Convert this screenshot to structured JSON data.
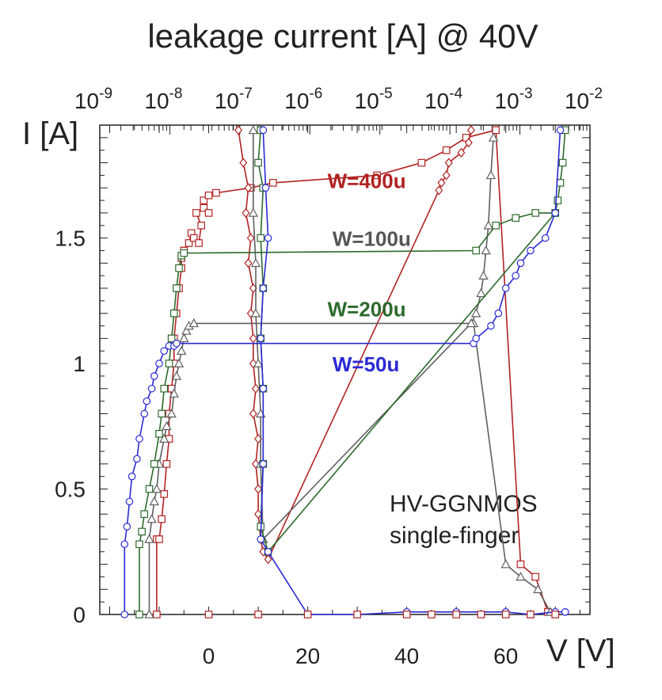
{
  "chart_data": {
    "type": "line",
    "title": "leakage current [A] @ 40V",
    "xlabel": "V [V]",
    "ylabel": "I [A]",
    "xlim": [
      -22,
      77
    ],
    "ylim": [
      0,
      1.95
    ],
    "x_ticks": [
      0,
      20,
      40,
      60
    ],
    "y_ticks": [
      0,
      0.5,
      1,
      1.5
    ],
    "y_tick_labels": [
      "0",
      "0.5",
      "1",
      "1.5"
    ],
    "top_axis": {
      "label": "leakage current [A] @ 40V",
      "scale": "log",
      "lim": [
        1e-09,
        0.01
      ],
      "tick_bases": [
        "10",
        "10",
        "10",
        "10",
        "10",
        "10",
        "10",
        "10"
      ],
      "tick_exponents": [
        "-9",
        "-8",
        "-7",
        "-6",
        "-5",
        "-4",
        "-3",
        "-2"
      ]
    },
    "annotation": [
      "HV-GGNMOS",
      "single-finger"
    ],
    "series": [
      {
        "name": "W=400u",
        "color": "#b22222",
        "marker": "square",
        "marker2": "diamond",
        "tlp": {
          "V": [
            -10.5,
            -10.5,
            -10.0,
            -9.5,
            -9.0,
            -8.5,
            -8.0,
            -8.0,
            -7.5,
            -7.0,
            -7.0,
            -6.5,
            -6.0,
            -5.5,
            -5.5,
            -5.0,
            -5.0,
            -4.0,
            -3.5,
            -3.0,
            -2.0,
            -1.5,
            -2.5,
            -1.0,
            0.0,
            -1.0,
            0.0,
            1.5,
            8.5,
            13.0,
            34.0,
            43.0,
            48.0,
            52.0,
            58.0,
            63.0,
            66.0,
            68.5
          ],
          "I": [
            0.0,
            0.3,
            0.3,
            0.38,
            0.48,
            0.6,
            0.7,
            0.8,
            0.9,
            1.0,
            1.1,
            1.2,
            1.3,
            1.38,
            1.42,
            1.45,
            1.45,
            1.48,
            1.52,
            1.5,
            1.48,
            1.55,
            1.6,
            1.62,
            1.6,
            1.65,
            1.67,
            1.68,
            1.7,
            1.72,
            1.75,
            1.8,
            1.85,
            1.9,
            1.93,
            0.2,
            0.15,
            0.01
          ]
        },
        "leak": {
          "V": [
            6.0,
            7.0,
            8.0,
            7.5,
            8.5,
            8.0,
            9.0,
            8.5,
            9.0,
            9.0,
            9.5,
            9.0,
            10.0,
            9.5,
            10.0,
            10.0,
            10.5,
            11.0,
            12.0,
            46.5,
            47.0,
            48.0,
            48.5,
            51.0,
            52.5,
            53.0
          ],
          "I": [
            1.93,
            1.8,
            1.7,
            1.6,
            1.5,
            1.4,
            1.3,
            1.2,
            1.1,
            1.0,
            0.9,
            0.8,
            0.7,
            0.6,
            0.5,
            0.4,
            0.3,
            0.25,
            0.22,
            1.69,
            1.72,
            1.75,
            1.8,
            1.84,
            1.88,
            1.93
          ]
        }
      },
      {
        "name": "W=100u",
        "color": "#606060",
        "marker": "triangle",
        "tlp": {
          "V": [
            -12.0,
            -12.0,
            -11.5,
            -11.0,
            -10.5,
            -10.0,
            -9.0,
            -8.5,
            -7.5,
            -7.0,
            -6.5,
            -6.0,
            -5.5,
            -5.0,
            -4.5,
            -4.0,
            -3.0,
            53.5,
            60.0,
            63.0,
            66.5,
            69.0
          ],
          "I": [
            0.0,
            0.3,
            0.38,
            0.45,
            0.5,
            0.6,
            0.7,
            0.75,
            0.8,
            0.88,
            0.95,
            1.0,
            1.05,
            1.1,
            1.13,
            1.15,
            1.16,
            1.16,
            0.2,
            0.15,
            0.1,
            0.01
          ]
        },
        "leak": {
          "V": [
            9.0,
            9.0,
            9.5,
            9.5,
            10.0,
            10.5,
            10.5,
            11.0,
            53.0,
            54.0,
            55.0,
            55.5,
            56.0,
            56.5,
            57.0,
            57.5
          ],
          "I": [
            1.93,
            1.6,
            1.4,
            1.2,
            1.0,
            0.8,
            0.6,
            0.3,
            1.16,
            1.2,
            1.28,
            1.35,
            1.45,
            1.55,
            1.75,
            1.9
          ]
        }
      },
      {
        "name": "W=200u",
        "color": "#2d6a2d",
        "marker": "square",
        "tlp": {
          "V": [
            -14.0,
            -14.0,
            -13.5,
            -13.0,
            -12.0,
            -11.0,
            -10.0,
            -9.5,
            -9.0,
            -8.0,
            -7.5,
            -7.0,
            -6.5,
            -6.0,
            -5.5,
            -5.0,
            54.0,
            58.0,
            62.0,
            66.0,
            70.0
          ],
          "I": [
            0.0,
            0.28,
            0.33,
            0.4,
            0.5,
            0.6,
            0.72,
            0.8,
            0.9,
            1.0,
            1.1,
            1.2,
            1.3,
            1.38,
            1.43,
            1.44,
            1.45,
            1.55,
            1.58,
            1.6,
            1.6
          ]
        },
        "leak": {
          "V": [
            10.5,
            10.0,
            11.0,
            10.5,
            11.0,
            10.5,
            11.0,
            11.0,
            10.5,
            12.0,
            70.0,
            70.5,
            71.0,
            71.5,
            72.0
          ],
          "I": [
            1.93,
            1.8,
            1.7,
            1.5,
            1.3,
            1.1,
            0.9,
            0.6,
            0.35,
            0.25,
            1.6,
            1.65,
            1.72,
            1.8,
            1.93
          ]
        }
      },
      {
        "name": "W=50u",
        "color": "#2a2ad4",
        "marker": "circle",
        "tlp": {
          "V": [
            -17.0,
            -17.0,
            -16.5,
            -16.0,
            -15.5,
            -14.5,
            -14.0,
            -13.0,
            -12.5,
            -11.5,
            -11.0,
            -10.0,
            -9.0,
            -8.0,
            -7.0,
            -6.5,
            53.5,
            54.0,
            57.0,
            58.5,
            60.0,
            62.0,
            63.0,
            65.0,
            68.0,
            70.0,
            71.0
          ],
          "I": [
            0.0,
            0.28,
            0.35,
            0.45,
            0.55,
            0.62,
            0.7,
            0.8,
            0.85,
            0.9,
            0.95,
            1.0,
            1.05,
            1.07,
            1.07,
            1.08,
            1.08,
            1.1,
            1.15,
            1.2,
            1.3,
            1.35,
            1.4,
            1.45,
            1.5,
            1.6,
            1.93
          ]
        },
        "leak": {
          "V": [
            11.0,
            11.5,
            12.0,
            11.0,
            10.5,
            11.0,
            11.0,
            10.5,
            12.0,
            20.0,
            30.0,
            40.0,
            50.0,
            60.0,
            65.0,
            70.0,
            72.0
          ],
          "I": [
            1.93,
            1.7,
            1.5,
            1.3,
            1.1,
            0.9,
            0.6,
            0.3,
            0.25,
            0.0,
            0.0,
            0.01,
            0.01,
            0.01,
            0.0,
            0.01,
            0.01
          ]
        }
      }
    ],
    "bottom_points": {
      "color": "#b22222",
      "V": [
        0,
        10,
        20,
        30,
        40,
        45,
        50,
        55,
        60,
        65,
        70
      ],
      "I": [
        0,
        0,
        0,
        0,
        0,
        0,
        0,
        0,
        0,
        0,
        0
      ]
    },
    "legend_labels": [
      {
        "text": "W=400u",
        "color": "#b22222",
        "x": 24,
        "y": 1.73
      },
      {
        "text": "W=100u",
        "color": "#555555",
        "x": 25,
        "y": 1.5
      },
      {
        "text": "W=200u",
        "color": "#2d6a2d",
        "x": 24,
        "y": 1.22
      },
      {
        "text": "W=50u",
        "color": "#2a2ad4",
        "x": 25,
        "y": 1.0
      }
    ]
  }
}
